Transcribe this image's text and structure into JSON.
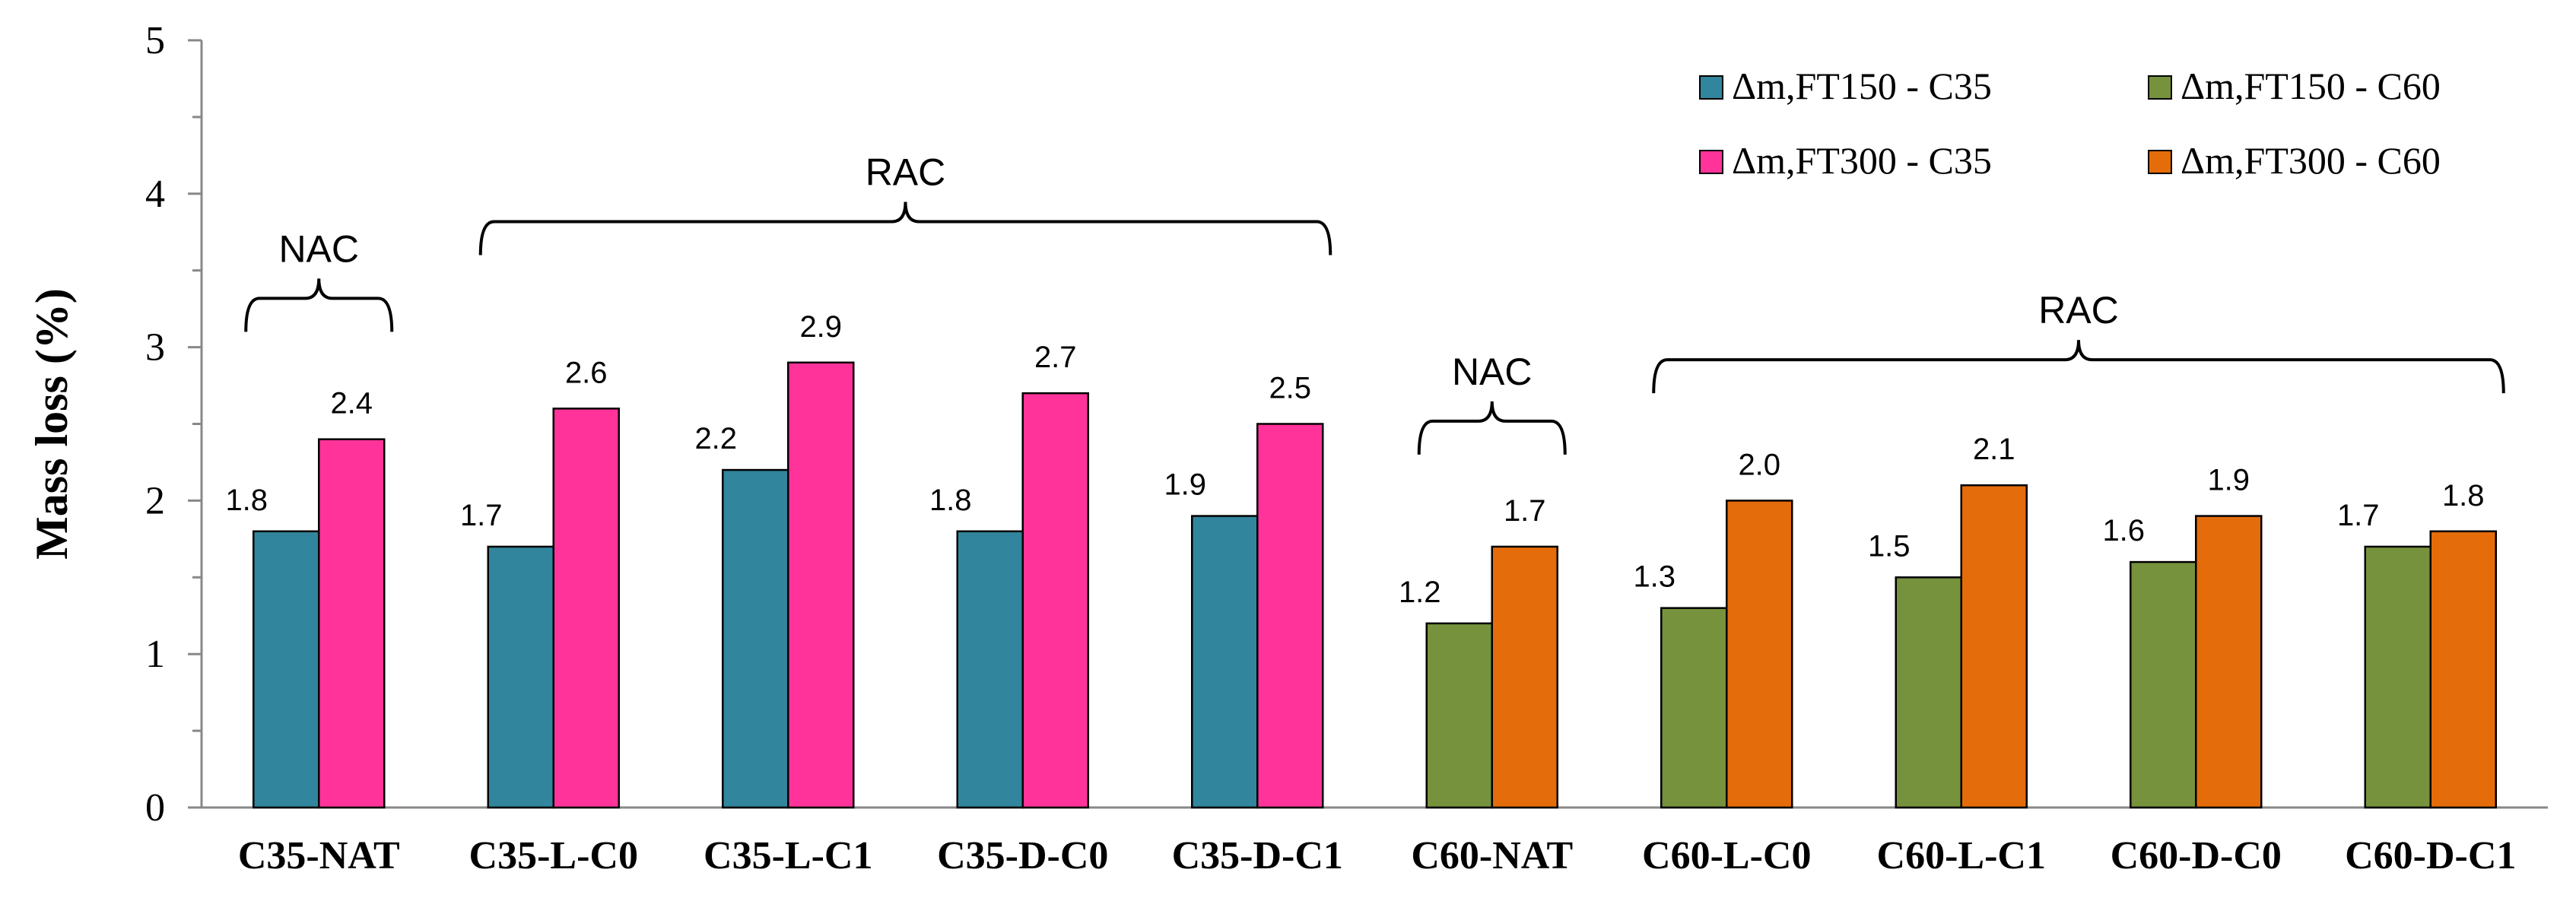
{
  "chart_data": {
    "type": "bar",
    "title": "",
    "xlabel": "",
    "ylabel": "Mass loss (%)",
    "ylim": [
      0,
      5
    ],
    "yticks": [
      0,
      1,
      2,
      3,
      4,
      5
    ],
    "grid": false,
    "legend_position": "top-right",
    "categories": [
      "C35-NAT",
      "C35-L-C0",
      "C35-L-C1",
      "C35-D-C0",
      "C35-D-C1",
      "C60-NAT",
      "C60-L-C0",
      "C60-L-C1",
      "C60-D-C0",
      "C60-D-C1"
    ],
    "series": [
      {
        "name": "Δm,FT150 - C35",
        "color": "#31859c",
        "values": [
          1.8,
          1.7,
          2.2,
          1.8,
          1.9,
          null,
          null,
          null,
          null,
          null
        ]
      },
      {
        "name": "Δm,FT300 - C35",
        "color": "#ff3399",
        "values": [
          2.4,
          2.6,
          2.9,
          2.7,
          2.5,
          null,
          null,
          null,
          null,
          null
        ]
      },
      {
        "name": "Δm,FT150 - C60",
        "color": "#76923c",
        "values": [
          null,
          null,
          null,
          null,
          null,
          1.2,
          1.3,
          1.5,
          1.6,
          1.7
        ]
      },
      {
        "name": "Δm,FT300 - C60",
        "color": "#e46c0a",
        "values": [
          null,
          null,
          null,
          null,
          null,
          1.7,
          2.0,
          2.1,
          1.9,
          1.8
        ]
      }
    ],
    "data_labels": {
      "first": [
        "1.8",
        "1.7",
        "2.2",
        "1.8",
        "1.9",
        "1.2",
        "1.3",
        "1.5",
        "1.6",
        "1.7"
      ],
      "second": [
        "2.4",
        "2.6",
        "2.9",
        "2.7",
        "2.5",
        "1.7",
        "2.0",
        "2.1",
        "1.9",
        "1.8"
      ]
    },
    "annotations": [
      {
        "label": "NAC",
        "from_category": 0,
        "to_category": 0,
        "level": 3.1
      },
      {
        "label": "RAC",
        "from_category": 1,
        "to_category": 4,
        "level": 3.6
      },
      {
        "label": "NAC",
        "from_category": 5,
        "to_category": 5,
        "level": 2.3
      },
      {
        "label": "RAC",
        "from_category": 6,
        "to_category": 9,
        "level": 2.7
      }
    ]
  }
}
